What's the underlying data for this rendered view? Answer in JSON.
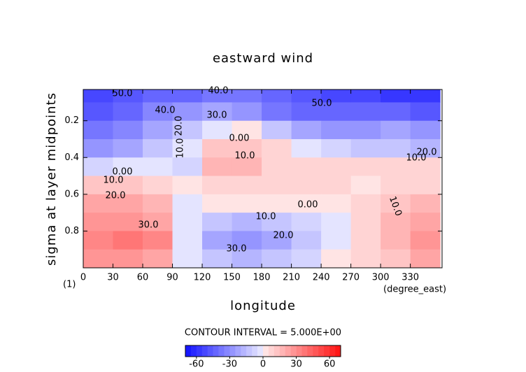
{
  "chart_data": {
    "type": "contour",
    "title": "eastward wind",
    "x_label": "longitude",
    "y_label": "sigma at layer midpoints",
    "x_unit": "(degree_east)",
    "frame_label": "(1)",
    "contour_interval_text": "CONTOUR INTERVAL = 5.000E+00",
    "xlim": [
      0,
      362
    ],
    "xticks": [
      0,
      30,
      60,
      90,
      120,
      150,
      180,
      210,
      240,
      270,
      300,
      330
    ],
    "ylim": [
      0.03,
      1.0
    ],
    "yticks": [
      0.2,
      0.4,
      0.6,
      0.8
    ],
    "y_reversed": true,
    "x": [
      15,
      45,
      75,
      105,
      135,
      165,
      195,
      225,
      255,
      285,
      315,
      345
    ],
    "y": [
      0.05,
      0.15,
      0.25,
      0.35,
      0.45,
      0.55,
      0.65,
      0.75,
      0.85,
      0.95
    ],
    "z": [
      [
        -55,
        -50,
        -45,
        -45,
        -40,
        -40,
        -45,
        -50,
        -55,
        -55,
        -60,
        -60
      ],
      [
        -50,
        -45,
        -35,
        -30,
        -25,
        -30,
        -40,
        -45,
        -45,
        -45,
        -45,
        -50
      ],
      [
        -40,
        -35,
        -25,
        -15,
        -5,
        0,
        -15,
        -25,
        -30,
        -30,
        -25,
        -30
      ],
      [
        -30,
        -25,
        -15,
        -5,
        10,
        10,
        5,
        -5,
        -10,
        -15,
        -15,
        -20
      ],
      [
        -10,
        -5,
        -5,
        -10,
        15,
        15,
        8,
        5,
        5,
        5,
        5,
        5
      ],
      [
        10,
        10,
        5,
        0,
        8,
        8,
        5,
        5,
        5,
        3,
        5,
        8
      ],
      [
        20,
        20,
        15,
        -5,
        0,
        0,
        0,
        0,
        3,
        5,
        10,
        15
      ],
      [
        25,
        25,
        20,
        -5,
        -15,
        -20,
        -15,
        -10,
        -5,
        5,
        15,
        20
      ],
      [
        30,
        35,
        30,
        -5,
        -25,
        -30,
        -25,
        -15,
        -5,
        5,
        15,
        25
      ],
      [
        25,
        25,
        20,
        -5,
        -15,
        -20,
        -15,
        -10,
        0,
        5,
        10,
        20
      ]
    ],
    "colorbar": {
      "lim": [
        -70,
        70
      ],
      "ticks": [
        -60,
        -30,
        0,
        30,
        60
      ],
      "step": 5,
      "negative_color": "#1010ff",
      "positive_color": "#ff1010"
    },
    "contour_labels": [
      "50.0",
      "40.0",
      "50.0",
      "40.0",
      "30.0",
      "20.0",
      "10.0",
      "0.00",
      "10.0",
      "20.0",
      "10.0",
      "0.00",
      "10.0",
      "20.0",
      "30.0",
      "0.00",
      "10.0",
      "20.0",
      "30.0",
      "10.0"
    ]
  }
}
